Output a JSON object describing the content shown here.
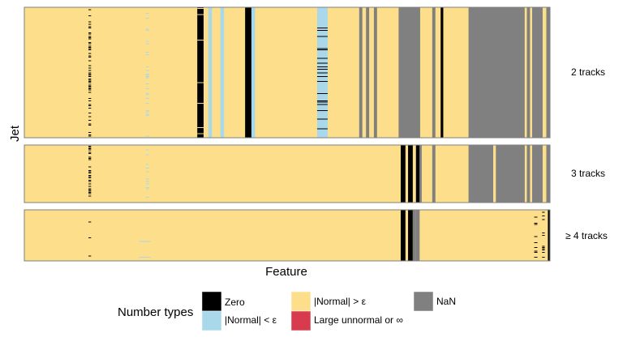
{
  "chart_data": {
    "type": "heatmap",
    "xlabel": "Feature",
    "ylabel": "Jet",
    "facets": [
      {
        "label": "2 tracks",
        "blocks": [
          {
            "x0": 0.0,
            "x1": 1.0,
            "type": "normal_gt_eps"
          },
          {
            "x0": 0.329,
            "x1": 0.341,
            "type": "zero"
          },
          {
            "x0": 0.35,
            "x1": 0.357,
            "type": "normal_lt_eps"
          },
          {
            "x0": 0.373,
            "x1": 0.38,
            "type": "normal_lt_eps"
          },
          {
            "x0": 0.42,
            "x1": 0.432,
            "type": "zero"
          },
          {
            "x0": 0.432,
            "x1": 0.439,
            "type": "normal_lt_eps"
          },
          {
            "x0": 0.557,
            "x1": 0.577,
            "type": "normal_lt_eps"
          },
          {
            "x0": 0.637,
            "x1": 0.643,
            "type": "nan"
          },
          {
            "x0": 0.65,
            "x1": 0.656,
            "type": "nan"
          },
          {
            "x0": 0.665,
            "x1": 0.671,
            "type": "nan"
          },
          {
            "x0": 0.712,
            "x1": 0.753,
            "type": "nan"
          },
          {
            "x0": 0.776,
            "x1": 0.782,
            "type": "nan"
          },
          {
            "x0": 0.792,
            "x1": 0.797,
            "type": "zero"
          },
          {
            "x0": 0.845,
            "x1": 0.952,
            "type": "nan"
          },
          {
            "x0": 0.952,
            "x1": 0.956,
            "type": "normal_gt_eps"
          },
          {
            "x0": 0.956,
            "x1": 0.962,
            "type": "nan"
          },
          {
            "x0": 0.966,
            "x1": 0.986,
            "type": "nan"
          },
          {
            "x0": 0.993,
            "x1": 1.0,
            "type": "nan"
          }
        ],
        "speckle_columns": [
          {
            "x0": 0.122,
            "x1": 0.127,
            "type": "zero",
            "density": 0.5
          },
          {
            "x0": 0.231,
            "x1": 0.237,
            "type": "normal_lt_eps",
            "density": 0.3
          },
          {
            "x0": 0.329,
            "x1": 0.341,
            "type": "normal_gt_eps",
            "density": 0.05
          },
          {
            "x0": 0.557,
            "x1": 0.577,
            "type": "zero",
            "density": 0.12
          }
        ]
      },
      {
        "label": "3 tracks",
        "blocks": [
          {
            "x0": 0.0,
            "x1": 1.0,
            "type": "normal_gt_eps"
          },
          {
            "x0": 0.716,
            "x1": 0.725,
            "type": "zero"
          },
          {
            "x0": 0.73,
            "x1": 0.739,
            "type": "zero"
          },
          {
            "x0": 0.745,
            "x1": 0.752,
            "type": "zero"
          },
          {
            "x0": 0.752,
            "x1": 0.756,
            "type": "nan"
          },
          {
            "x0": 0.776,
            "x1": 0.782,
            "type": "nan"
          },
          {
            "x0": 0.845,
            "x1": 0.892,
            "type": "nan"
          },
          {
            "x0": 0.897,
            "x1": 0.952,
            "type": "nan"
          },
          {
            "x0": 0.956,
            "x1": 0.962,
            "type": "nan"
          },
          {
            "x0": 0.966,
            "x1": 0.986,
            "type": "nan"
          },
          {
            "x0": 0.993,
            "x1": 1.0,
            "type": "nan"
          }
        ],
        "speckle_columns": [
          {
            "x0": 0.122,
            "x1": 0.127,
            "type": "zero",
            "density": 0.55
          },
          {
            "x0": 0.231,
            "x1": 0.237,
            "type": "normal_lt_eps",
            "density": 0.15
          }
        ]
      },
      {
        "label": "≥ 4 tracks",
        "blocks": [
          {
            "x0": 0.0,
            "x1": 1.0,
            "type": "normal_gt_eps"
          },
          {
            "x0": 0.716,
            "x1": 0.725,
            "type": "zero"
          },
          {
            "x0": 0.73,
            "x1": 0.739,
            "type": "zero"
          },
          {
            "x0": 0.739,
            "x1": 0.745,
            "type": "nan"
          },
          {
            "x0": 0.745,
            "x1": 0.752,
            "type": "nan"
          },
          {
            "x0": 0.996,
            "x1": 1.0,
            "type": "zero"
          }
        ],
        "speckle_columns": [
          {
            "x0": 0.122,
            "x1": 0.127,
            "type": "zero",
            "density": 0.12
          },
          {
            "x0": 0.218,
            "x1": 0.24,
            "type": "normal_lt_eps",
            "density": 0.1
          },
          {
            "x0": 0.97,
            "x1": 0.976,
            "type": "zero",
            "density": 0.35
          },
          {
            "x0": 0.985,
            "x1": 0.99,
            "type": "zero",
            "density": 0.3
          }
        ]
      }
    ],
    "legend": {
      "title": "Number types",
      "position": "bottom",
      "entries": [
        {
          "key": "zero",
          "label": "Zero",
          "color": "#000000"
        },
        {
          "key": "normal_gt_eps",
          "label": "|Normal| > ε",
          "color": "#fddf8b"
        },
        {
          "key": "nan",
          "label": "NaN",
          "color": "#808080"
        },
        {
          "key": "normal_lt_eps",
          "label": "|Normal| < ε",
          "color": "#a8d8ea"
        },
        {
          "key": "large_unnormal",
          "label": "Large unnormal or ∞",
          "color": "#d83b4e"
        }
      ]
    },
    "panel_border_color": "#7f7f7f"
  }
}
